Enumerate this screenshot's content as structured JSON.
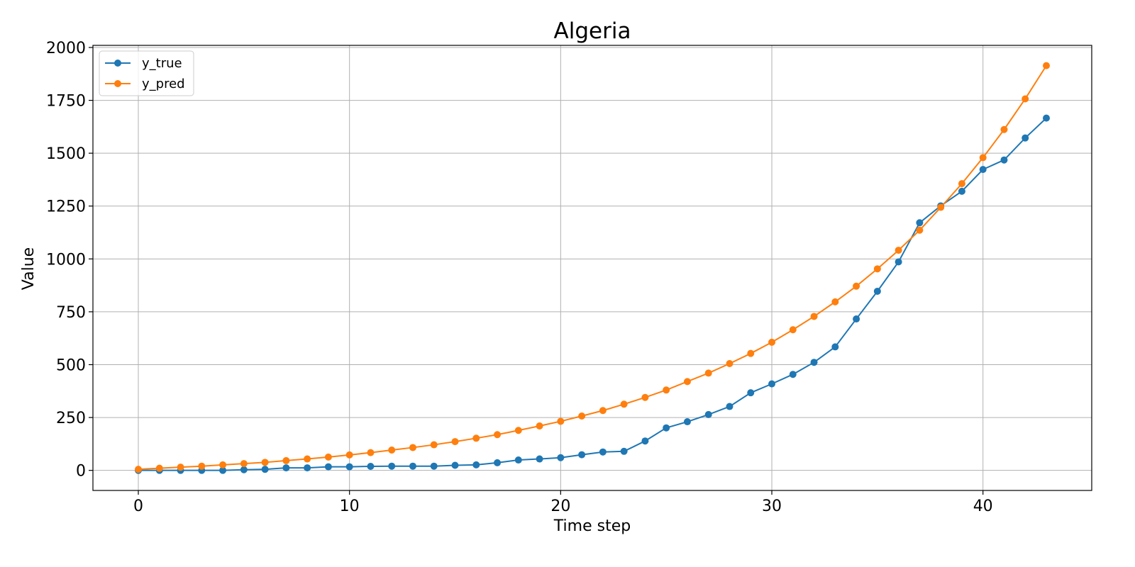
{
  "chart_data": {
    "type": "line",
    "title": "Algeria",
    "xlabel": "Time step",
    "ylabel": "Value",
    "xlim": [
      -2.15,
      45.15
    ],
    "ylim": [
      -95,
      2010
    ],
    "x_ticks": [
      0,
      10,
      20,
      30,
      40
    ],
    "y_ticks": [
      0,
      250,
      500,
      750,
      1000,
      1250,
      1500,
      1750,
      2000
    ],
    "grid": true,
    "legend_position": "upper-left",
    "x": [
      0,
      1,
      2,
      3,
      4,
      5,
      6,
      7,
      8,
      9,
      10,
      11,
      12,
      13,
      14,
      15,
      16,
      17,
      18,
      19,
      20,
      21,
      22,
      23,
      24,
      25,
      26,
      27,
      28,
      29,
      30,
      31,
      32,
      33,
      34,
      35,
      36,
      37,
      38,
      39,
      40,
      41,
      42,
      43
    ],
    "series": [
      {
        "name": "y_true",
        "color": "#1f77b4",
        "values": [
          0,
          0,
          0,
          0,
          0,
          3,
          5,
          12,
          12,
          17,
          17,
          19,
          20,
          20,
          20,
          24,
          26,
          36,
          49,
          54,
          60,
          74,
          87,
          90,
          139,
          201,
          230,
          264,
          302,
          367,
          409,
          454,
          511,
          584,
          716,
          847,
          986,
          1171,
          1251,
          1320,
          1423,
          1468,
          1572,
          1666
        ]
      },
      {
        "name": "y_pred",
        "color": "#ff7f0e",
        "values": [
          5,
          10,
          15,
          20,
          26,
          32,
          38,
          46,
          54,
          63,
          73,
          84,
          96,
          108,
          121,
          136,
          152,
          169,
          189,
          210,
          232,
          257,
          283,
          313,
          345,
          380,
          420,
          460,
          505,
          553,
          606,
          665,
          728,
          797,
          871,
          953,
          1041,
          1136,
          1244,
          1356,
          1479,
          1612,
          1757,
          1914
        ]
      }
    ]
  }
}
